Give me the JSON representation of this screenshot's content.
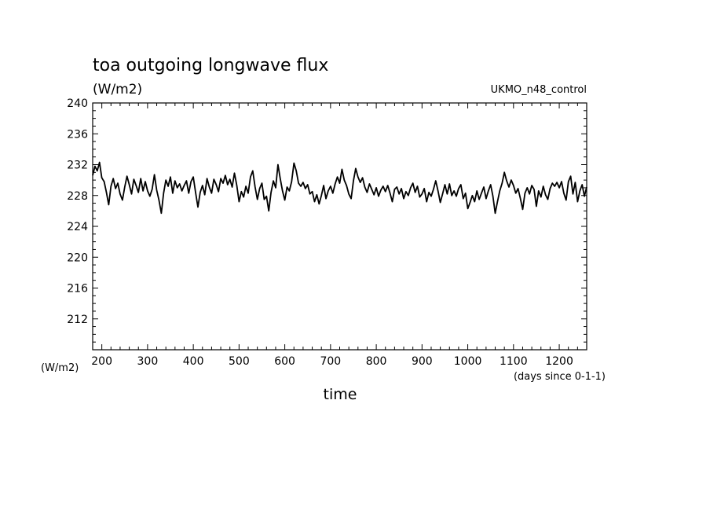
{
  "chart_data": {
    "type": "line",
    "title": "toa outgoing longwave flux",
    "subtitle": "(W/m2)",
    "series_label": "UKMO_n48_control",
    "xlabel": "time",
    "x_units": "(days since 0-1-1)",
    "y_units": "(W/m2)",
    "xlim": [
      180,
      1260
    ],
    "ylim": [
      208,
      240
    ],
    "x_ticks": [
      "200",
      "300",
      "400",
      "500",
      "600",
      "700",
      "800",
      "900",
      "1000",
      "1100",
      "1200"
    ],
    "y_ticks": [
      "212",
      "216",
      "220",
      "224",
      "228",
      "232",
      "236",
      "240"
    ],
    "grid": false,
    "series": [
      {
        "values": [
          [
            180,
            230.6
          ],
          [
            185,
            231.8
          ],
          [
            190,
            231.2
          ],
          [
            195,
            232.3
          ],
          [
            200,
            230.3
          ],
          [
            205,
            229.8
          ],
          [
            210,
            228.4
          ],
          [
            215,
            226.8
          ],
          [
            220,
            229.2
          ],
          [
            225,
            230.2
          ],
          [
            230,
            228.9
          ],
          [
            235,
            229.6
          ],
          [
            240,
            228.2
          ],
          [
            245,
            227.4
          ],
          [
            250,
            229.1
          ],
          [
            255,
            230.5
          ],
          [
            260,
            229.4
          ],
          [
            265,
            228.2
          ],
          [
            270,
            230.1
          ],
          [
            275,
            229.3
          ],
          [
            280,
            228.4
          ],
          [
            285,
            230.2
          ],
          [
            290,
            228.6
          ],
          [
            295,
            229.8
          ],
          [
            300,
            228.6
          ],
          [
            305,
            227.9
          ],
          [
            310,
            228.8
          ],
          [
            315,
            230.7
          ],
          [
            320,
            228.7
          ],
          [
            325,
            227.4
          ],
          [
            330,
            225.7
          ],
          [
            335,
            228.3
          ],
          [
            340,
            230.0
          ],
          [
            345,
            229.2
          ],
          [
            350,
            230.4
          ],
          [
            355,
            228.3
          ],
          [
            360,
            229.9
          ],
          [
            365,
            229.0
          ],
          [
            370,
            229.5
          ],
          [
            375,
            228.6
          ],
          [
            380,
            229.3
          ],
          [
            385,
            229.9
          ],
          [
            390,
            228.3
          ],
          [
            395,
            229.8
          ],
          [
            400,
            230.4
          ],
          [
            405,
            228.4
          ],
          [
            410,
            226.5
          ],
          [
            415,
            228.4
          ],
          [
            420,
            229.3
          ],
          [
            425,
            228.1
          ],
          [
            430,
            230.2
          ],
          [
            435,
            229.1
          ],
          [
            440,
            228.3
          ],
          [
            445,
            230.1
          ],
          [
            450,
            229.4
          ],
          [
            455,
            228.5
          ],
          [
            460,
            230.2
          ],
          [
            465,
            229.6
          ],
          [
            470,
            230.6
          ],
          [
            475,
            229.4
          ],
          [
            480,
            230.1
          ],
          [
            485,
            229.1
          ],
          [
            490,
            230.9
          ],
          [
            495,
            229.3
          ],
          [
            500,
            227.2
          ],
          [
            505,
            228.5
          ],
          [
            510,
            227.8
          ],
          [
            515,
            229.2
          ],
          [
            520,
            228.3
          ],
          [
            525,
            230.4
          ],
          [
            530,
            231.2
          ],
          [
            535,
            229.1
          ],
          [
            540,
            227.5
          ],
          [
            545,
            228.9
          ],
          [
            550,
            229.6
          ],
          [
            555,
            227.5
          ],
          [
            560,
            227.9
          ],
          [
            565,
            226.0
          ],
          [
            570,
            228.4
          ],
          [
            575,
            229.9
          ],
          [
            580,
            229.0
          ],
          [
            585,
            232.0
          ],
          [
            590,
            230.2
          ],
          [
            595,
            228.6
          ],
          [
            600,
            227.4
          ],
          [
            605,
            229.1
          ],
          [
            610,
            228.6
          ],
          [
            615,
            229.8
          ],
          [
            620,
            232.2
          ],
          [
            625,
            231.2
          ],
          [
            630,
            229.6
          ],
          [
            635,
            229.2
          ],
          [
            640,
            229.7
          ],
          [
            645,
            228.9
          ],
          [
            650,
            229.4
          ],
          [
            655,
            228.2
          ],
          [
            660,
            228.5
          ],
          [
            665,
            227.2
          ],
          [
            670,
            228.1
          ],
          [
            675,
            226.9
          ],
          [
            680,
            228.0
          ],
          [
            685,
            229.3
          ],
          [
            690,
            227.6
          ],
          [
            695,
            228.6
          ],
          [
            700,
            229.2
          ],
          [
            705,
            228.3
          ],
          [
            710,
            229.5
          ],
          [
            715,
            230.4
          ],
          [
            720,
            229.6
          ],
          [
            725,
            231.4
          ],
          [
            730,
            230.0
          ],
          [
            735,
            229.3
          ],
          [
            740,
            228.2
          ],
          [
            745,
            227.6
          ],
          [
            750,
            229.9
          ],
          [
            755,
            231.5
          ],
          [
            760,
            230.4
          ],
          [
            765,
            229.7
          ],
          [
            770,
            230.3
          ],
          [
            775,
            229.1
          ],
          [
            780,
            228.4
          ],
          [
            785,
            229.5
          ],
          [
            790,
            228.8
          ],
          [
            795,
            228.1
          ],
          [
            800,
            229.0
          ],
          [
            805,
            227.9
          ],
          [
            810,
            228.7
          ],
          [
            815,
            229.2
          ],
          [
            820,
            228.5
          ],
          [
            825,
            229.3
          ],
          [
            830,
            228.3
          ],
          [
            835,
            227.2
          ],
          [
            840,
            228.8
          ],
          [
            845,
            229.1
          ],
          [
            850,
            228.2
          ],
          [
            855,
            228.9
          ],
          [
            860,
            227.6
          ],
          [
            865,
            228.5
          ],
          [
            870,
            228.0
          ],
          [
            875,
            229.0
          ],
          [
            880,
            229.6
          ],
          [
            885,
            228.4
          ],
          [
            890,
            229.2
          ],
          [
            895,
            227.8
          ],
          [
            900,
            228.2
          ],
          [
            905,
            228.9
          ],
          [
            910,
            227.2
          ],
          [
            915,
            228.4
          ],
          [
            920,
            227.9
          ],
          [
            925,
            228.8
          ],
          [
            930,
            229.9
          ],
          [
            935,
            228.6
          ],
          [
            940,
            227.1
          ],
          [
            945,
            228.2
          ],
          [
            950,
            229.4
          ],
          [
            955,
            228.2
          ],
          [
            960,
            229.5
          ],
          [
            965,
            228.0
          ],
          [
            970,
            228.6
          ],
          [
            975,
            227.9
          ],
          [
            980,
            228.9
          ],
          [
            985,
            229.4
          ],
          [
            990,
            227.6
          ],
          [
            995,
            228.3
          ],
          [
            1000,
            226.3
          ],
          [
            1005,
            227.1
          ],
          [
            1010,
            228.0
          ],
          [
            1015,
            227.2
          ],
          [
            1020,
            228.6
          ],
          [
            1025,
            227.5
          ],
          [
            1030,
            228.3
          ],
          [
            1035,
            229.1
          ],
          [
            1040,
            227.6
          ],
          [
            1045,
            228.6
          ],
          [
            1050,
            229.4
          ],
          [
            1055,
            227.9
          ],
          [
            1060,
            225.7
          ],
          [
            1065,
            227.2
          ],
          [
            1070,
            228.6
          ],
          [
            1075,
            229.6
          ],
          [
            1080,
            231.0
          ],
          [
            1085,
            229.9
          ],
          [
            1090,
            229.1
          ],
          [
            1095,
            230.0
          ],
          [
            1100,
            229.3
          ],
          [
            1105,
            228.3
          ],
          [
            1110,
            228.9
          ],
          [
            1115,
            227.6
          ],
          [
            1120,
            226.2
          ],
          [
            1125,
            228.3
          ],
          [
            1130,
            229.0
          ],
          [
            1135,
            228.2
          ],
          [
            1140,
            229.3
          ],
          [
            1145,
            228.8
          ],
          [
            1150,
            226.6
          ],
          [
            1155,
            228.6
          ],
          [
            1160,
            227.8
          ],
          [
            1165,
            229.2
          ],
          [
            1170,
            228.1
          ],
          [
            1175,
            227.5
          ],
          [
            1180,
            228.9
          ],
          [
            1185,
            229.6
          ],
          [
            1190,
            229.2
          ],
          [
            1195,
            229.7
          ],
          [
            1200,
            229.0
          ],
          [
            1205,
            229.8
          ],
          [
            1210,
            228.3
          ],
          [
            1215,
            227.4
          ],
          [
            1220,
            229.8
          ],
          [
            1225,
            230.5
          ],
          [
            1230,
            228.2
          ],
          [
            1235,
            229.7
          ],
          [
            1240,
            227.2
          ],
          [
            1245,
            228.6
          ],
          [
            1250,
            229.4
          ],
          [
            1255,
            227.9
          ],
          [
            1260,
            229.1
          ]
        ]
      }
    ]
  }
}
